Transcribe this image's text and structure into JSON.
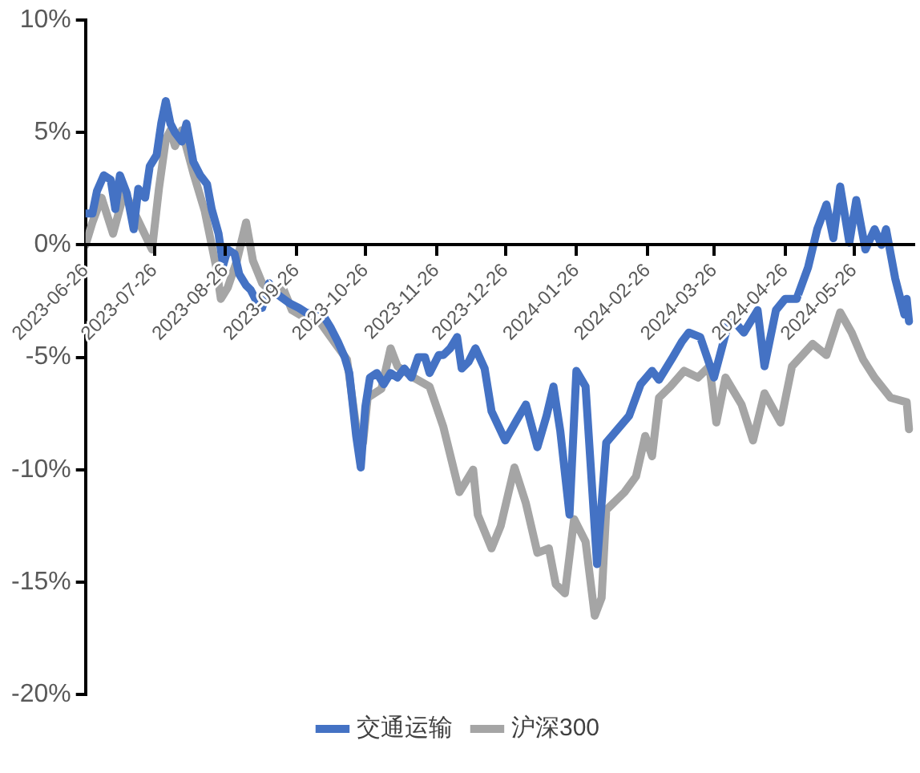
{
  "chart_data": {
    "type": "line",
    "legend": "bottom",
    "grid": false,
    "marker": "none",
    "line_style": "solid",
    "xlim": [
      "2023-06-26",
      "2024-06-21"
    ],
    "xticks": [
      "2023-06-26",
      "2023-07-26",
      "2023-08-26",
      "2023-09-26",
      "2023-10-26",
      "2023-11-26",
      "2023-12-26",
      "2024-01-26",
      "2024-02-26",
      "2024-03-26",
      "2024-04-26",
      "2024-05-26"
    ],
    "ylim": [
      -20,
      10
    ],
    "yticks": [
      {
        "value": -20,
        "label": "-20%"
      },
      {
        "value": -15,
        "label": "-15%"
      },
      {
        "value": -10,
        "label": "-10%"
      },
      {
        "value": -5,
        "label": "-5%"
      },
      {
        "value": 0,
        "label": "0%"
      },
      {
        "value": 5,
        "label": "5%"
      },
      {
        "value": 10,
        "label": "10%"
      }
    ],
    "series": [
      {
        "name": "交通运输",
        "color": "#4472c4",
        "x": [
          "2023-06-26",
          "2023-06-29",
          "2023-07-01",
          "2023-07-04",
          "2023-07-07",
          "2023-07-09",
          "2023-07-11",
          "2023-07-14",
          "2023-07-17",
          "2023-07-19",
          "2023-07-22",
          "2023-07-24",
          "2023-07-27",
          "2023-07-29",
          "2023-07-31",
          "2023-08-02",
          "2023-08-04",
          "2023-08-07",
          "2023-08-09",
          "2023-08-12",
          "2023-08-15",
          "2023-08-18",
          "2023-08-20",
          "2023-08-23",
          "2023-08-25",
          "2023-08-27",
          "2023-08-30",
          "2023-09-01",
          "2023-09-04",
          "2023-09-06",
          "2023-09-09",
          "2023-09-11",
          "2023-09-14",
          "2023-09-16",
          "2023-09-19",
          "2023-09-23",
          "2023-09-27",
          "2023-09-30",
          "2023-10-04",
          "2023-10-08",
          "2023-10-11",
          "2023-10-14",
          "2023-10-17",
          "2023-10-19",
          "2023-10-22",
          "2023-10-24",
          "2023-10-26",
          "2023-10-28",
          "2023-10-31",
          "2023-11-03",
          "2023-11-06",
          "2023-11-09",
          "2023-11-12",
          "2023-11-15",
          "2023-11-18",
          "2023-11-21",
          "2023-11-23",
          "2023-11-27",
          "2023-11-29",
          "2023-12-02",
          "2023-12-05",
          "2023-12-07",
          "2023-12-10",
          "2023-12-13",
          "2023-12-17",
          "2023-12-20",
          "2023-12-26",
          "2023-12-31",
          "2024-01-04",
          "2024-01-09",
          "2024-01-13",
          "2024-01-16",
          "2024-01-19",
          "2024-01-23",
          "2024-01-26",
          "2024-01-30",
          "2024-02-04",
          "2024-02-08",
          "2024-02-18",
          "2024-02-23",
          "2024-02-28",
          "2024-03-02",
          "2024-03-08",
          "2024-03-12",
          "2024-03-15",
          "2024-03-20",
          "2024-03-26",
          "2024-04-02",
          "2024-04-08",
          "2024-04-14",
          "2024-04-17",
          "2024-04-22",
          "2024-04-26",
          "2024-05-01",
          "2024-05-06",
          "2024-05-10",
          "2024-05-14",
          "2024-05-17",
          "2024-05-20",
          "2024-05-24",
          "2024-05-27",
          "2024-05-31",
          "2024-06-04",
          "2024-06-07",
          "2024-06-09",
          "2024-06-13",
          "2024-06-17",
          "2024-06-18",
          "2024-06-19"
        ],
        "values": [
          1.4,
          1.4,
          2.4,
          3.1,
          2.9,
          1.6,
          3.1,
          2.3,
          0.7,
          2.5,
          2.1,
          3.5,
          4.0,
          5.4,
          6.4,
          5.4,
          5.0,
          4.6,
          5.4,
          3.7,
          3.1,
          2.7,
          1.6,
          0.5,
          -0.9,
          -0.2,
          -0.4,
          -1.3,
          -1.8,
          -2.0,
          -2.6,
          -2.8,
          -1.7,
          -2.1,
          -2.3,
          -2.6,
          -2.8,
          -3.0,
          -3.1,
          -3.2,
          -3.7,
          -4.3,
          -5.0,
          -5.7,
          -8.5,
          -9.9,
          -7.2,
          -5.9,
          -5.7,
          -6.2,
          -5.7,
          -5.9,
          -5.5,
          -5.9,
          -5.0,
          -5.0,
          -5.7,
          -4.9,
          -4.9,
          -4.6,
          -4.1,
          -5.5,
          -5.2,
          -4.6,
          -5.5,
          -7.4,
          -8.7,
          -7.8,
          -7.1,
          -9.0,
          -7.6,
          -6.3,
          -8.3,
          -12.0,
          -5.6,
          -6.3,
          -14.2,
          -8.8,
          -7.6,
          -6.2,
          -5.6,
          -6.0,
          -5.0,
          -4.3,
          -3.9,
          -4.1,
          -5.9,
          -3.2,
          -3.9,
          -2.9,
          -5.4,
          -2.9,
          -2.4,
          -2.4,
          -1.0,
          0.7,
          1.8,
          0.3,
          2.6,
          0.1,
          2.0,
          -0.2,
          0.7,
          0.0,
          0.7,
          -1.5,
          -3.1,
          -2.4,
          -3.4
        ]
      },
      {
        "name": "沪深300",
        "color": "#a5a5a5",
        "x": [
          "2023-06-26",
          "2023-06-29",
          "2023-07-03",
          "2023-07-08",
          "2023-07-13",
          "2023-07-17",
          "2023-07-25",
          "2023-07-28",
          "2023-07-31",
          "2023-08-02",
          "2023-08-04",
          "2023-08-07",
          "2023-08-12",
          "2023-08-17",
          "2023-08-22",
          "2023-08-24",
          "2023-08-27",
          "2023-08-31",
          "2023-09-04",
          "2023-09-07",
          "2023-09-11",
          "2023-09-16",
          "2023-09-20",
          "2023-09-24",
          "2023-09-29",
          "2023-10-06",
          "2023-10-13",
          "2023-10-18",
          "2023-10-22",
          "2023-10-25",
          "2023-10-27",
          "2023-11-02",
          "2023-11-06",
          "2023-11-09",
          "2023-11-16",
          "2023-11-23",
          "2023-11-29",
          "2023-12-06",
          "2023-12-12",
          "2023-12-14",
          "2023-12-20",
          "2023-12-24",
          "2023-12-30",
          "2024-01-04",
          "2024-01-09",
          "2024-01-14",
          "2024-01-17",
          "2024-01-21",
          "2024-01-25",
          "2024-01-30",
          "2024-02-03",
          "2024-02-06",
          "2024-02-08",
          "2024-02-16",
          "2024-02-21",
          "2024-02-25",
          "2024-02-28",
          "2024-03-02",
          "2024-03-07",
          "2024-03-13",
          "2024-03-19",
          "2024-03-24",
          "2024-03-27",
          "2024-03-31",
          "2024-04-07",
          "2024-04-12",
          "2024-04-17",
          "2024-04-24",
          "2024-04-29",
          "2024-05-08",
          "2024-05-14",
          "2024-05-20",
          "2024-05-25",
          "2024-05-30",
          "2024-06-04",
          "2024-06-11",
          "2024-06-18",
          "2024-06-19"
        ],
        "values": [
          0.0,
          1.0,
          2.1,
          0.5,
          2.4,
          1.5,
          -0.2,
          2.5,
          4.7,
          5.1,
          4.4,
          5.1,
          3.2,
          1.5,
          -1.0,
          -2.4,
          -1.9,
          -0.7,
          1.0,
          -0.7,
          -1.7,
          -2.2,
          -1.9,
          -2.9,
          -3.2,
          -3.4,
          -4.4,
          -5.1,
          -8.1,
          -8.8,
          -6.8,
          -6.4,
          -4.6,
          -5.4,
          -5.9,
          -6.3,
          -8.1,
          -11.0,
          -10.0,
          -12.0,
          -13.5,
          -12.5,
          -9.9,
          -11.5,
          -13.7,
          -13.5,
          -15.1,
          -15.5,
          -12.2,
          -13.2,
          -16.5,
          -15.7,
          -11.8,
          -11.0,
          -10.3,
          -8.5,
          -9.4,
          -6.8,
          -6.3,
          -5.6,
          -5.9,
          -5.4,
          -7.9,
          -5.9,
          -7.1,
          -8.7,
          -6.6,
          -7.9,
          -5.4,
          -4.4,
          -4.9,
          -3.0,
          -3.9,
          -5.1,
          -5.9,
          -6.8,
          -7.0,
          -8.2
        ]
      }
    ]
  }
}
